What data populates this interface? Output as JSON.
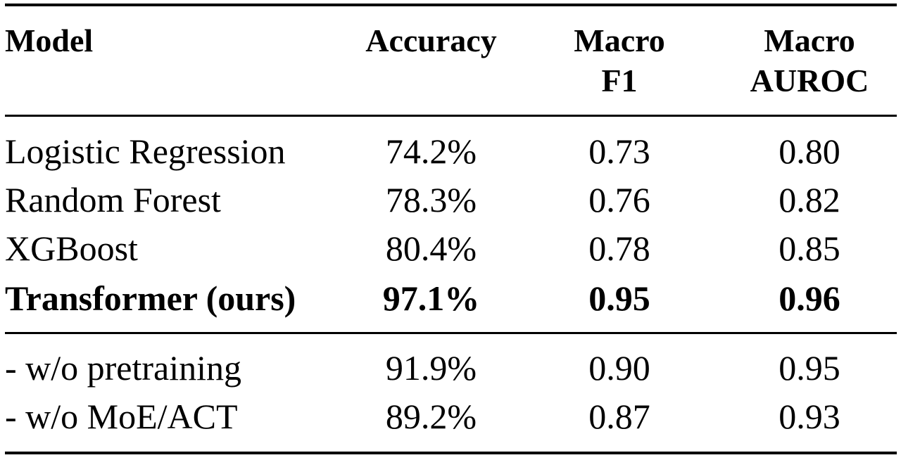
{
  "table": {
    "headers": {
      "model": "Model",
      "accuracy": "Accuracy",
      "macro_f1_line1": "Macro",
      "macro_f1_line2": "F1",
      "macro_auroc_line1": "Macro",
      "macro_auroc_line2": "AUROC"
    },
    "rows": [
      {
        "model": "Logistic Regression",
        "accuracy": "74.2%",
        "macro_f1": "0.73",
        "macro_auroc": "0.80",
        "bold": false
      },
      {
        "model": "Random Forest",
        "accuracy": "78.3%",
        "macro_f1": "0.76",
        "macro_auroc": "0.82",
        "bold": false
      },
      {
        "model": "XGBoost",
        "accuracy": "80.4%",
        "macro_f1": "0.78",
        "macro_auroc": "0.85",
        "bold": false
      },
      {
        "model": "Transformer (ours)",
        "accuracy": "97.1%",
        "macro_f1": "0.95",
        "macro_auroc": "0.96",
        "bold": true
      },
      {
        "model": "- w/o pretraining",
        "accuracy": "91.9%",
        "macro_f1": "0.90",
        "macro_auroc": "0.95",
        "bold": false
      },
      {
        "model": "- w/o MoE/ACT",
        "accuracy": "89.2%",
        "macro_f1": "0.87",
        "macro_auroc": "0.93",
        "bold": false
      }
    ]
  }
}
